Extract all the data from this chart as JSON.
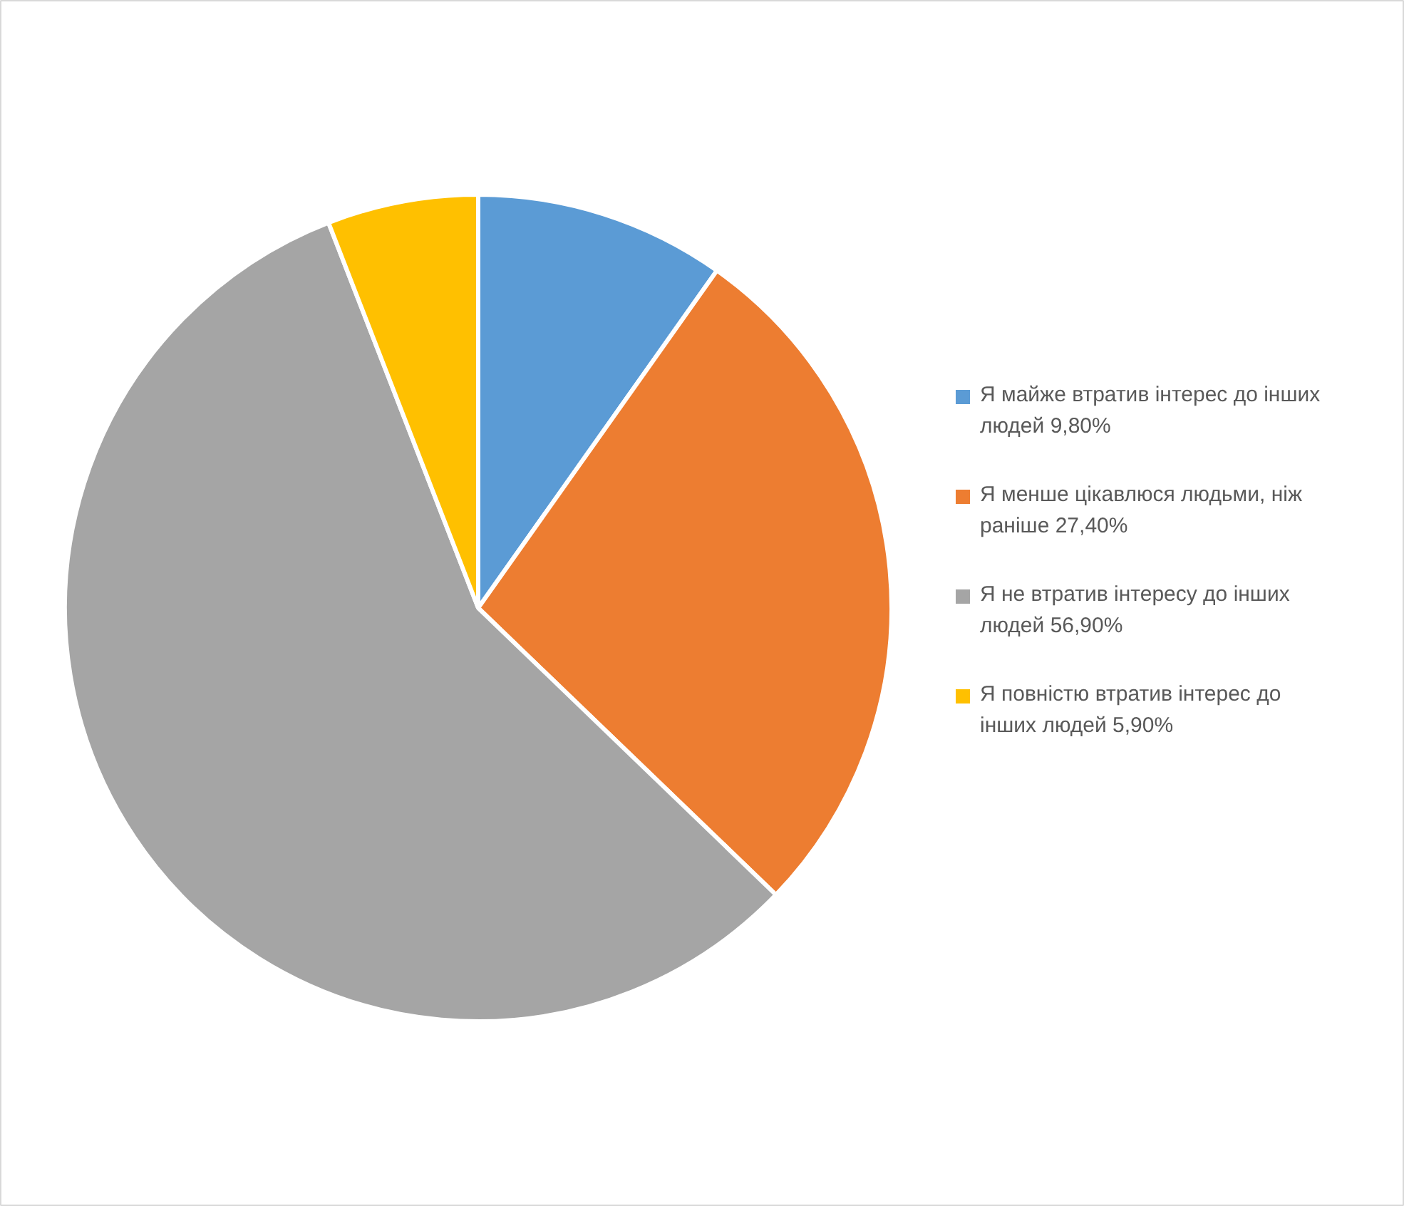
{
  "chart_data": {
    "type": "pie",
    "categories": [
      "Я майже втратив інтерес до інших людей 9,80%",
      "Я менше цікавлюся людьми, ніж раніше 27,40%",
      "Я не втратив інтересу до інших людей 56,90%",
      "Я повністю втратив інтерес до інших людей 5,90%"
    ],
    "values": [
      9.8,
      27.4,
      56.9,
      5.9
    ],
    "colors": [
      "#5b9bd5",
      "#ed7d31",
      "#a5a5a5",
      "#ffc000"
    ],
    "legend": "right"
  }
}
